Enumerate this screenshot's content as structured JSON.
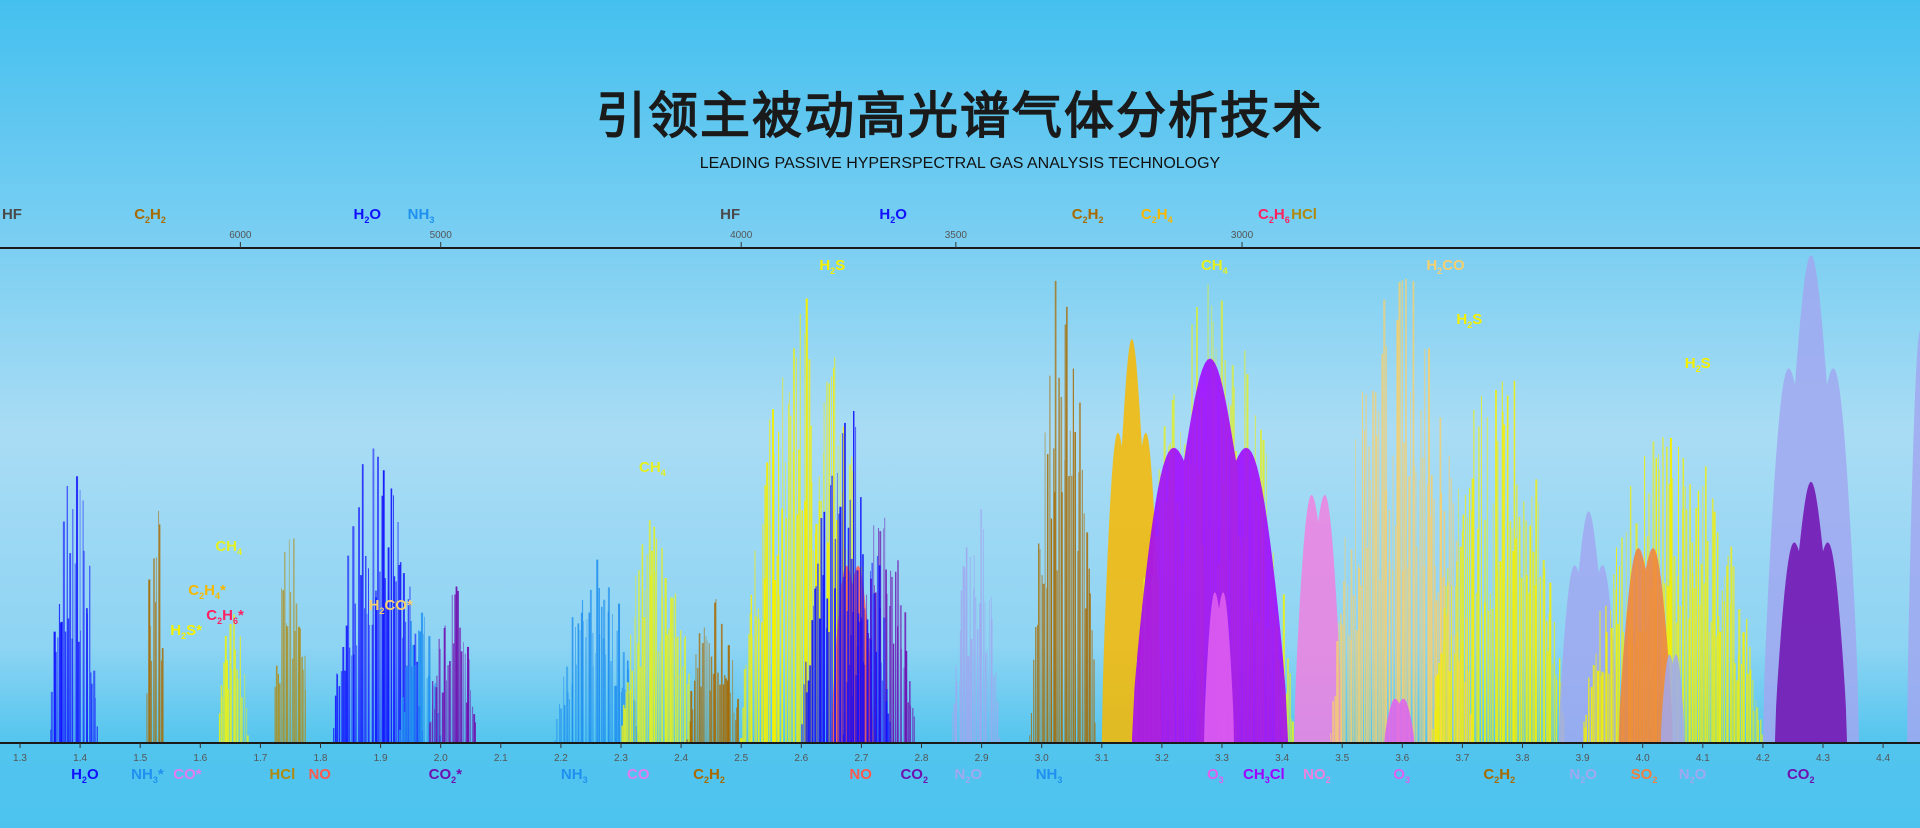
{
  "header": {
    "title": "引领主被动高光谱气体分析技术",
    "subtitle": "LEADING PASSIVE HYPERSPECTRAL GAS ANALYSIS TECHNOLOGY"
  },
  "axes": {
    "wavelength_um": {
      "ticks": [
        1.3,
        1.4,
        1.5,
        1.6,
        1.7,
        1.8,
        1.9,
        2.0,
        2.1,
        2.2,
        2.3,
        2.4,
        2.5,
        2.6,
        2.7,
        2.8,
        2.9,
        3.0,
        3.1,
        3.2,
        3.3,
        3.4,
        3.5,
        3.6,
        3.7,
        3.8,
        3.9,
        4.0,
        4.1,
        4.2,
        4.3,
        4.4
      ],
      "range": [
        1.27,
        4.5
      ]
    },
    "wavenumber_cm": {
      "ticks": [
        6000,
        5000,
        4000,
        3500,
        3000
      ]
    }
  },
  "colors": {
    "HF": "#4a4a4a",
    "H2O": "#1010ff",
    "NH3": "#2090f0",
    "CO": "#e27cf0",
    "HCl": "#b08a10",
    "NO": "#ff5a50",
    "CO2": "#7010b0",
    "C2H2": "#a86a00",
    "N2O": "#a0a8f0",
    "O3": "#e060f0",
    "CH3Cl": "#a000ff",
    "NO2": "#f080e0",
    "SO2": "#f08040",
    "H2S": "#f5f000",
    "CH4": "#e4f020",
    "C2H4": "#f8b800",
    "C2H6": "#ff2060",
    "H2CO": "#f5d070"
  },
  "top_labels": [
    {
      "gas": "HF",
      "parts": [
        [
          "HF",
          ""
        ]
      ],
      "um": 1.27
    },
    {
      "gas": "C2H2",
      "parts": [
        [
          "C",
          "2"
        ],
        [
          "H",
          "2"
        ]
      ],
      "um": 1.49
    },
    {
      "gas": "H2O",
      "parts": [
        [
          "H",
          "2"
        ],
        [
          "O",
          ""
        ]
      ],
      "um": 1.855
    },
    {
      "gas": "NH3",
      "parts": [
        [
          "NH",
          "3"
        ]
      ],
      "um": 1.945
    },
    {
      "gas": "HF",
      "parts": [
        [
          "HF",
          ""
        ]
      ],
      "um": 2.465
    },
    {
      "gas": "H2O",
      "parts": [
        [
          "H",
          "2"
        ],
        [
          "O",
          ""
        ]
      ],
      "um": 2.73
    },
    {
      "gas": "C2H2",
      "parts": [
        [
          "C",
          "2"
        ],
        [
          "H",
          "2"
        ]
      ],
      "um": 3.05
    },
    {
      "gas": "C2H4",
      "parts": [
        [
          "C",
          "2"
        ],
        [
          "H",
          "4"
        ]
      ],
      "um": 3.165
    },
    {
      "gas": "C2H6",
      "parts": [
        [
          "C",
          "2"
        ],
        [
          "H",
          "6"
        ]
      ],
      "um": 3.36
    },
    {
      "gas": "HCl",
      "parts": [
        [
          "HCl",
          ""
        ]
      ],
      "um": 3.415
    }
  ],
  "inner_labels": [
    {
      "gas": "H2S",
      "parts": [
        [
          "H",
          "2"
        ],
        [
          "S",
          ""
        ]
      ],
      "um": 2.63,
      "level": 0.97
    },
    {
      "gas": "CH4",
      "parts": [
        [
          "CH",
          "4"
        ]
      ],
      "um": 3.265,
      "level": 0.97
    },
    {
      "gas": "H2CO",
      "parts": [
        [
          "H",
          "2"
        ],
        [
          "CO",
          ""
        ]
      ],
      "um": 3.64,
      "level": 0.97
    },
    {
      "gas": "H2S",
      "parts": [
        [
          "H",
          "2"
        ],
        [
          "S",
          ""
        ]
      ],
      "um": 3.69,
      "level": 0.86
    },
    {
      "gas": "H2S",
      "parts": [
        [
          "H",
          "2"
        ],
        [
          "S",
          ""
        ]
      ],
      "um": 4.07,
      "level": 0.77
    },
    {
      "gas": "CH4",
      "parts": [
        [
          "CH",
          "4"
        ]
      ],
      "um": 2.33,
      "level": 0.56
    },
    {
      "gas": "CH4",
      "parts": [
        [
          "CH",
          "4"
        ]
      ],
      "um": 1.625,
      "level": 0.4
    },
    {
      "gas": "C2H4",
      "parts": [
        [
          "C",
          "2"
        ],
        [
          "H",
          "4"
        ],
        [
          "*",
          ""
        ]
      ],
      "um": 1.58,
      "level": 0.31
    },
    {
      "gas": "C2H6",
      "parts": [
        [
          "C",
          "2"
        ],
        [
          "H",
          "6"
        ],
        [
          "*",
          ""
        ]
      ],
      "um": 1.61,
      "level": 0.26
    },
    {
      "gas": "H2S",
      "parts": [
        [
          "H",
          "2"
        ],
        [
          "S*",
          ""
        ]
      ],
      "um": 1.55,
      "level": 0.23
    },
    {
      "gas": "H2CO",
      "parts": [
        [
          "H",
          "2"
        ],
        [
          "CO*",
          ""
        ]
      ],
      "um": 1.88,
      "level": 0.28
    }
  ],
  "bottom_labels": [
    {
      "gas": "H2O",
      "parts": [
        [
          "H",
          "2"
        ],
        [
          "O",
          ""
        ]
      ],
      "um": 1.385
    },
    {
      "gas": "NH3",
      "parts": [
        [
          "NH",
          "3"
        ],
        [
          "*",
          ""
        ]
      ],
      "um": 1.485
    },
    {
      "gas": "CO",
      "parts": [
        [
          "CO*",
          ""
        ]
      ],
      "um": 1.555
    },
    {
      "gas": "HCl",
      "parts": [
        [
          "HCl",
          ""
        ]
      ],
      "um": 1.715
    },
    {
      "gas": "NO",
      "parts": [
        [
          "NO",
          ""
        ]
      ],
      "um": 1.78
    },
    {
      "gas": "CO2",
      "parts": [
        [
          "CO",
          "2"
        ],
        [
          "*",
          ""
        ]
      ],
      "um": 1.98
    },
    {
      "gas": "NH3",
      "parts": [
        [
          "NH",
          "3"
        ]
      ],
      "um": 2.2
    },
    {
      "gas": "CO",
      "parts": [
        [
          "CO",
          ""
        ]
      ],
      "um": 2.31
    },
    {
      "gas": "C2H2",
      "parts": [
        [
          "C",
          "2"
        ],
        [
          "H",
          "2"
        ]
      ],
      "um": 2.42
    },
    {
      "gas": "NO",
      "parts": [
        [
          "NO",
          ""
        ]
      ],
      "um": 2.68
    },
    {
      "gas": "CO2",
      "parts": [
        [
          "CO",
          "2"
        ]
      ],
      "um": 2.765
    },
    {
      "gas": "N2O",
      "parts": [
        [
          "N",
          "2"
        ],
        [
          "O",
          ""
        ]
      ],
      "um": 2.855
    },
    {
      "gas": "NH3",
      "parts": [
        [
          "NH",
          "3"
        ]
      ],
      "um": 2.99
    },
    {
      "gas": "O3",
      "parts": [
        [
          "O",
          "3"
        ]
      ],
      "um": 3.275
    },
    {
      "gas": "CH3Cl",
      "parts": [
        [
          "CH",
          "3"
        ],
        [
          "Cl",
          ""
        ]
      ],
      "um": 3.335
    },
    {
      "gas": "NO2",
      "parts": [
        [
          "NO",
          "2"
        ]
      ],
      "um": 3.435
    },
    {
      "gas": "O3",
      "parts": [
        [
          "O",
          "3"
        ]
      ],
      "um": 3.585
    },
    {
      "gas": "C2H2",
      "parts": [
        [
          "C",
          "2"
        ],
        [
          "H",
          "2"
        ]
      ],
      "um": 3.735
    },
    {
      "gas": "N2O",
      "parts": [
        [
          "N",
          "2"
        ],
        [
          "O",
          ""
        ]
      ],
      "um": 3.878
    },
    {
      "gas": "SO2",
      "parts": [
        [
          "SO",
          "2"
        ]
      ],
      "um": 3.98
    },
    {
      "gas": "N2O",
      "parts": [
        [
          "N",
          "2"
        ],
        [
          "O",
          ""
        ]
      ],
      "um": 4.06
    },
    {
      "gas": "CO2",
      "parts": [
        [
          "CO",
          "2"
        ]
      ],
      "um": 4.24
    }
  ],
  "bands": [
    {
      "gas": "HCl",
      "from": 1.72,
      "to": 1.78,
      "peak": 0.45,
      "style": "lines"
    },
    {
      "gas": "C2H2",
      "from": 1.51,
      "to": 1.54,
      "peak": 0.57,
      "style": "lines"
    },
    {
      "gas": "H2O",
      "from": 1.35,
      "to": 1.43,
      "peak": 0.58,
      "style": "lines"
    },
    {
      "gas": "CH4",
      "from": 1.63,
      "to": 1.68,
      "peak": 0.3,
      "style": "lines"
    },
    {
      "gas": "H2O",
      "from": 1.82,
      "to": 1.97,
      "peak": 0.64,
      "style": "lines"
    },
    {
      "gas": "NH3",
      "from": 1.93,
      "to": 2.0,
      "peak": 0.3,
      "style": "lines"
    },
    {
      "gas": "CO2",
      "from": 1.98,
      "to": 2.06,
      "peak": 0.33,
      "style": "lines"
    },
    {
      "gas": "NH3",
      "from": 2.19,
      "to": 2.33,
      "peak": 0.38,
      "style": "lines"
    },
    {
      "gas": "CH4",
      "from": 2.3,
      "to": 2.42,
      "peak": 0.5,
      "style": "lines"
    },
    {
      "gas": "C2H2",
      "from": 2.41,
      "to": 2.5,
      "peak": 0.3,
      "style": "lines"
    },
    {
      "gas": "H2S",
      "from": 2.5,
      "to": 2.72,
      "peak": 0.98,
      "style": "lines"
    },
    {
      "gas": "NO",
      "from": 2.65,
      "to": 2.72,
      "peak": 0.4,
      "style": "smooth"
    },
    {
      "gas": "CO2",
      "from": 2.67,
      "to": 2.79,
      "peak": 0.5,
      "style": "lines"
    },
    {
      "gas": "H2O",
      "from": 2.6,
      "to": 2.75,
      "peak": 0.7,
      "style": "lines"
    },
    {
      "gas": "N2O",
      "from": 2.85,
      "to": 2.93,
      "peak": 0.5,
      "style": "lines"
    },
    {
      "gas": "C2H2",
      "from": 2.98,
      "to": 3.09,
      "peak": 0.98,
      "style": "lines"
    },
    {
      "gas": "C2H4",
      "from": 3.1,
      "to": 3.2,
      "peak": 0.82,
      "style": "smooth"
    },
    {
      "gas": "CH4",
      "from": 3.15,
      "to": 3.42,
      "peak": 0.95,
      "style": "lines"
    },
    {
      "gas": "CH3Cl",
      "from": 3.15,
      "to": 3.41,
      "peak": 0.78,
      "style": "smooth"
    },
    {
      "gas": "O3",
      "from": 3.27,
      "to": 3.32,
      "peak": 0.34,
      "style": "smooth"
    },
    {
      "gas": "NO2",
      "from": 3.42,
      "to": 3.5,
      "peak": 0.56,
      "style": "smooth"
    },
    {
      "gas": "H2CO",
      "from": 3.48,
      "to": 3.72,
      "peak": 0.97,
      "style": "lines"
    },
    {
      "gas": "H2S",
      "from": 3.65,
      "to": 3.87,
      "peak": 0.78,
      "style": "lines"
    },
    {
      "gas": "O3",
      "from": 3.57,
      "to": 3.62,
      "peak": 0.1,
      "style": "smooth"
    },
    {
      "gas": "N2O",
      "from": 3.86,
      "to": 3.96,
      "peak": 0.47,
      "style": "smooth"
    },
    {
      "gas": "H2S",
      "from": 3.9,
      "to": 4.2,
      "peak": 0.65,
      "style": "lines"
    },
    {
      "gas": "SO2",
      "from": 3.96,
      "to": 4.05,
      "peak": 0.44,
      "style": "smooth"
    },
    {
      "gas": "N2O",
      "from": 4.03,
      "to": 4.07,
      "peak": 0.2,
      "style": "smooth"
    },
    {
      "gas": "N2O",
      "from": 4.2,
      "to": 4.36,
      "peak": 0.99,
      "style": "smooth"
    },
    {
      "gas": "CO2",
      "from": 4.22,
      "to": 4.34,
      "peak": 0.53,
      "style": "smooth"
    },
    {
      "gas": "N2O",
      "from": 4.44,
      "to": 4.5,
      "peak": 0.93,
      "style": "smooth"
    }
  ]
}
